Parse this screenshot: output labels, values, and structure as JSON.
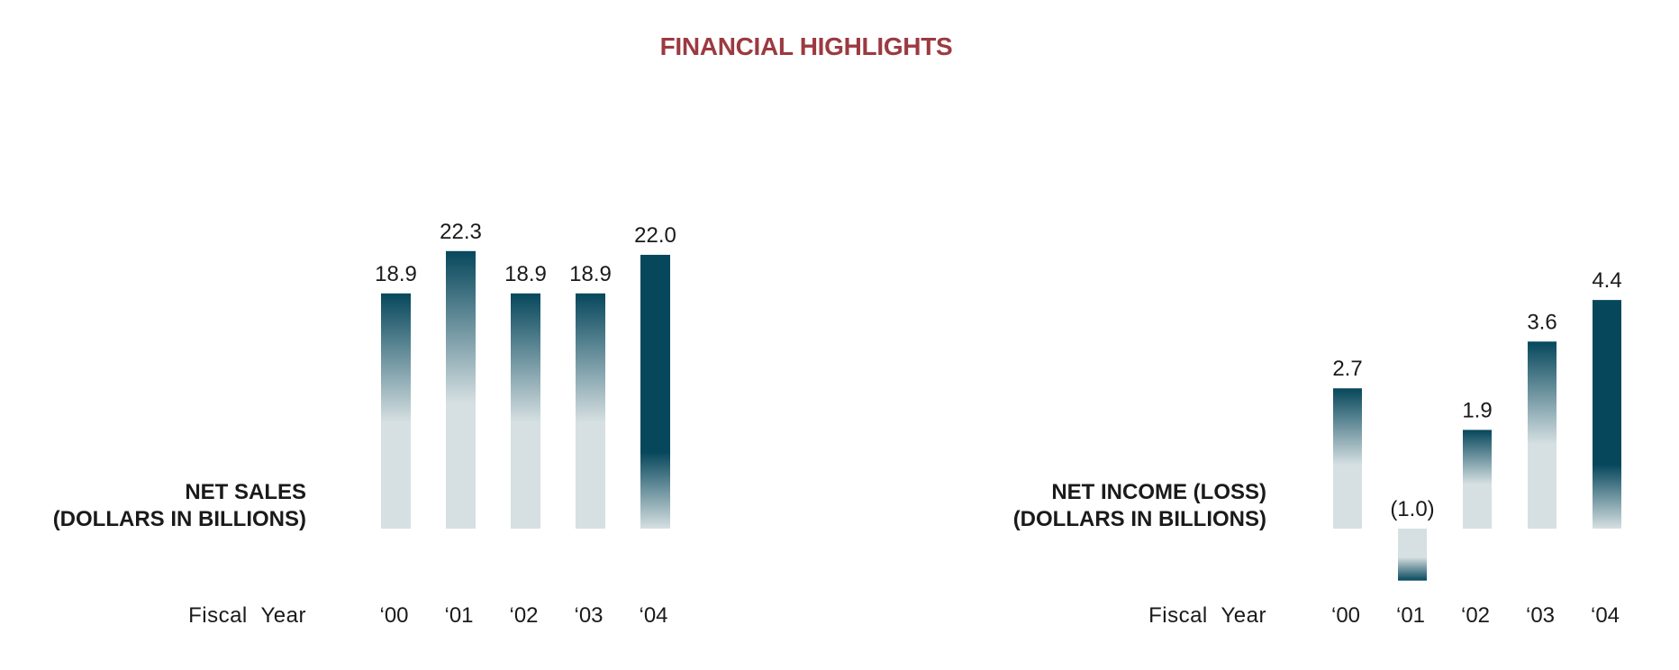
{
  "page": {
    "title": "FINANCIAL HIGHLIGHTS",
    "title_color": "#9b3a40"
  },
  "colors": {
    "bar_dark": "#06475c",
    "bar_light": "#d6e0e2",
    "text": "#1a1a1a"
  },
  "chart_data": [
    {
      "type": "bar",
      "title": "NET SALES",
      "subtitle": "(DOLLARS IN BILLIONS)",
      "xlabel": "Fiscal Year",
      "ylabel": "",
      "categories": [
        "‘00",
        "‘01",
        "‘02",
        "‘03",
        "‘04"
      ],
      "values": [
        18.9,
        22.3,
        18.9,
        18.9,
        22.0
      ],
      "value_labels": [
        "18.9",
        "22.3",
        "18.9",
        "18.9",
        "22.0"
      ],
      "highlight_index": 4
    },
    {
      "type": "bar",
      "title": "NET INCOME (LOSS)",
      "subtitle": "(DOLLARS IN BILLIONS)",
      "xlabel": "Fiscal Year",
      "ylabel": "",
      "categories": [
        "‘00",
        "‘01",
        "‘02",
        "‘03",
        "‘04"
      ],
      "values": [
        2.7,
        -1.0,
        1.9,
        3.6,
        4.4
      ],
      "value_labels": [
        "2.7",
        "(1.0)",
        "1.9",
        "3.6",
        "4.4"
      ],
      "highlight_index": 4
    }
  ]
}
